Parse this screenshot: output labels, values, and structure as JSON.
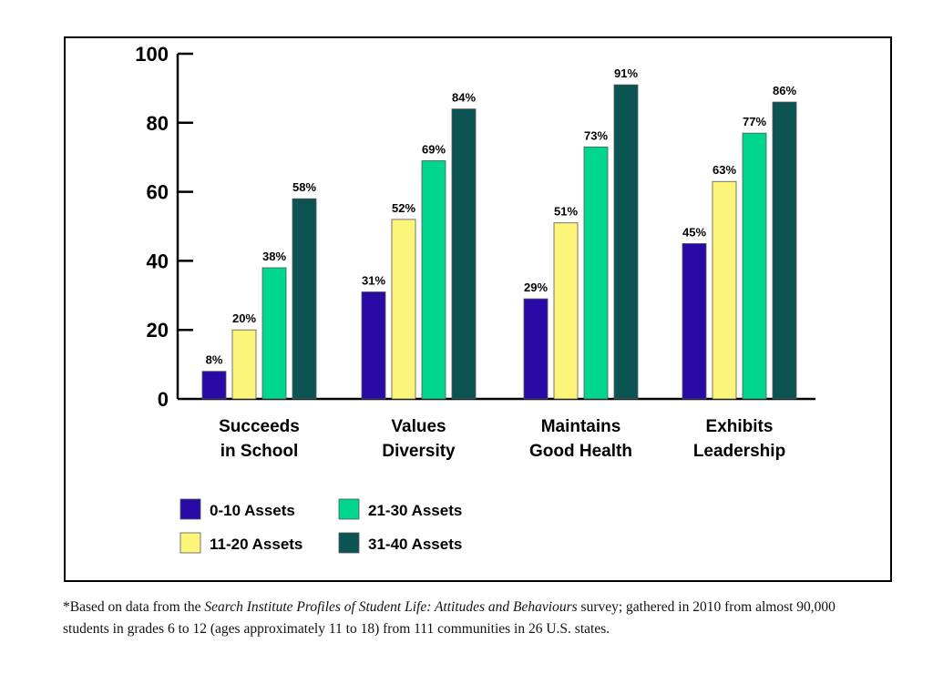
{
  "chart_data": {
    "type": "bar",
    "title": "",
    "xlabel": "",
    "ylabel": "",
    "ylim": [
      0,
      100
    ],
    "yticks": [
      0,
      20,
      40,
      60,
      80,
      100
    ],
    "grid": false,
    "legend_placement": "bottom-left",
    "categories": [
      [
        "Succeeds",
        "in School"
      ],
      [
        "Values",
        "Diversity"
      ],
      [
        "Maintains",
        "Good Health"
      ],
      [
        "Exhibits",
        "Leadership"
      ]
    ],
    "series": [
      {
        "name": "0-10 Assets",
        "color": "#2a0aa5",
        "values": [
          8,
          31,
          29,
          45
        ]
      },
      {
        "name": "11-20 Assets",
        "color": "#fdf57a",
        "values": [
          20,
          52,
          51,
          63
        ]
      },
      {
        "name": "21-30 Assets",
        "color": "#00d68e",
        "values": [
          38,
          69,
          73,
          77
        ]
      },
      {
        "name": "31-40 Assets",
        "color": "#0c5454",
        "values": [
          58,
          84,
          91,
          86
        ]
      }
    ],
    "value_suffix": "%"
  },
  "footnote": {
    "prefix": "*Based on data from the ",
    "italic": "Search Institute Profiles of  Student Life: Attitudes and Behaviours",
    "suffix": " survey; gathered in 2010 from almost 90,000 students in grades 6 to 12 (ages approximately 11 to 18) from 111 communities in 26 U.S. states."
  }
}
